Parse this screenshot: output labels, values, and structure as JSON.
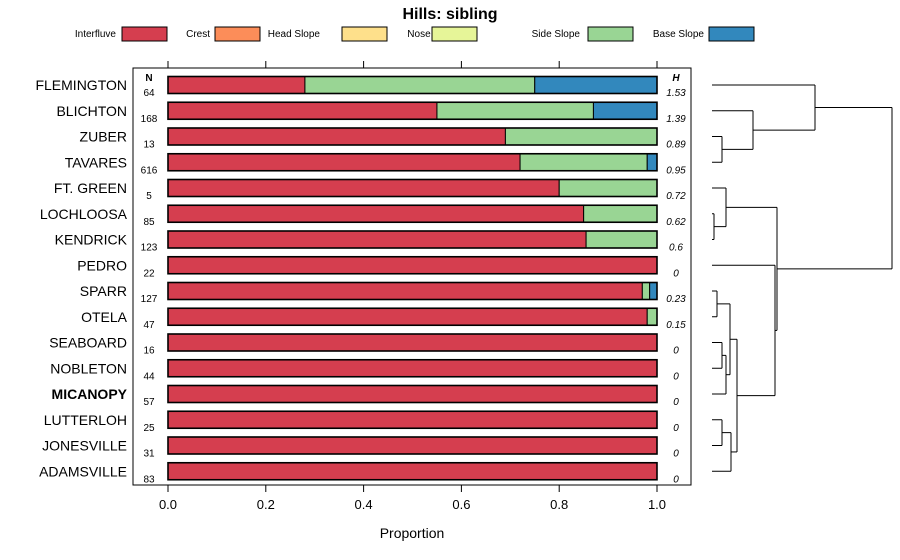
{
  "chart_data": {
    "type": "bar",
    "orientation": "horizontal-stacked",
    "title": "Hills: sibling",
    "xlabel": "Proportion",
    "ylabel": "",
    "xlim": [
      0,
      1
    ],
    "x_ticks": [
      0.0,
      0.2,
      0.4,
      0.6,
      0.8,
      1.0
    ],
    "x_tick_labels": [
      "0.0",
      "0.2",
      "0.4",
      "0.6",
      "0.8",
      "1.0"
    ],
    "legend_position": "top",
    "n_header": "N",
    "h_header": "H",
    "series": [
      {
        "name": "Interfluve",
        "color": "#d53e4f"
      },
      {
        "name": "Crest",
        "color": "#fc8d59"
      },
      {
        "name": "Head Slope",
        "color": "#fee08b"
      },
      {
        "name": "Nose Slope",
        "color": "#e6f598"
      },
      {
        "name": "Side Slope",
        "color": "#99d594"
      },
      {
        "name": "Base Slope",
        "color": "#3288bd"
      }
    ],
    "rows": [
      {
        "label": "FLEMINGTON",
        "n": "64",
        "h": "1.53",
        "bold": false,
        "values": [
          0.28,
          0,
          0,
          0,
          0.47,
          0.25
        ]
      },
      {
        "label": "BLICHTON",
        "n": "168",
        "h": "1.39",
        "bold": false,
        "values": [
          0.55,
          0,
          0,
          0,
          0.32,
          0.13
        ]
      },
      {
        "label": "ZUBER",
        "n": "13",
        "h": "0.89",
        "bold": false,
        "values": [
          0.69,
          0,
          0,
          0,
          0.31,
          0
        ]
      },
      {
        "label": "TAVARES",
        "n": "616",
        "h": "0.95",
        "bold": false,
        "values": [
          0.72,
          0,
          0,
          0,
          0.26,
          0.02
        ]
      },
      {
        "label": "FT. GREEN",
        "n": "5",
        "h": "0.72",
        "bold": false,
        "values": [
          0.8,
          0,
          0,
          0,
          0.2,
          0
        ]
      },
      {
        "label": "LOCHLOOSA",
        "n": "85",
        "h": "0.62",
        "bold": false,
        "values": [
          0.85,
          0,
          0,
          0,
          0.15,
          0
        ]
      },
      {
        "label": "KENDRICK",
        "n": "123",
        "h": "0.6",
        "bold": false,
        "values": [
          0.855,
          0,
          0,
          0,
          0.145,
          0
        ]
      },
      {
        "label": "PEDRO",
        "n": "22",
        "h": "0",
        "bold": false,
        "values": [
          1,
          0,
          0,
          0,
          0,
          0
        ]
      },
      {
        "label": "SPARR",
        "n": "127",
        "h": "0.23",
        "bold": false,
        "values": [
          0.97,
          0,
          0,
          0,
          0.015,
          0.015
        ]
      },
      {
        "label": "OTELA",
        "n": "47",
        "h": "0.15",
        "bold": false,
        "values": [
          0.98,
          0,
          0,
          0,
          0.02,
          0
        ]
      },
      {
        "label": "SEABOARD",
        "n": "16",
        "h": "0",
        "bold": false,
        "values": [
          1,
          0,
          0,
          0,
          0,
          0
        ]
      },
      {
        "label": "NOBLETON",
        "n": "44",
        "h": "0",
        "bold": false,
        "values": [
          1,
          0,
          0,
          0,
          0,
          0
        ]
      },
      {
        "label": "MICANOPY",
        "n": "57",
        "h": "0",
        "bold": true,
        "values": [
          1,
          0,
          0,
          0,
          0,
          0
        ]
      },
      {
        "label": "LUTTERLOH",
        "n": "25",
        "h": "0",
        "bold": false,
        "values": [
          1,
          0,
          0,
          0,
          0,
          0
        ]
      },
      {
        "label": "JONESVILLE",
        "n": "31",
        "h": "0",
        "bold": false,
        "values": [
          1,
          0,
          0,
          0,
          0,
          0
        ]
      },
      {
        "label": "ADAMSVILLE",
        "n": "83",
        "h": "0",
        "bold": false,
        "values": [
          1,
          0,
          0,
          0,
          0,
          0
        ]
      }
    ]
  }
}
